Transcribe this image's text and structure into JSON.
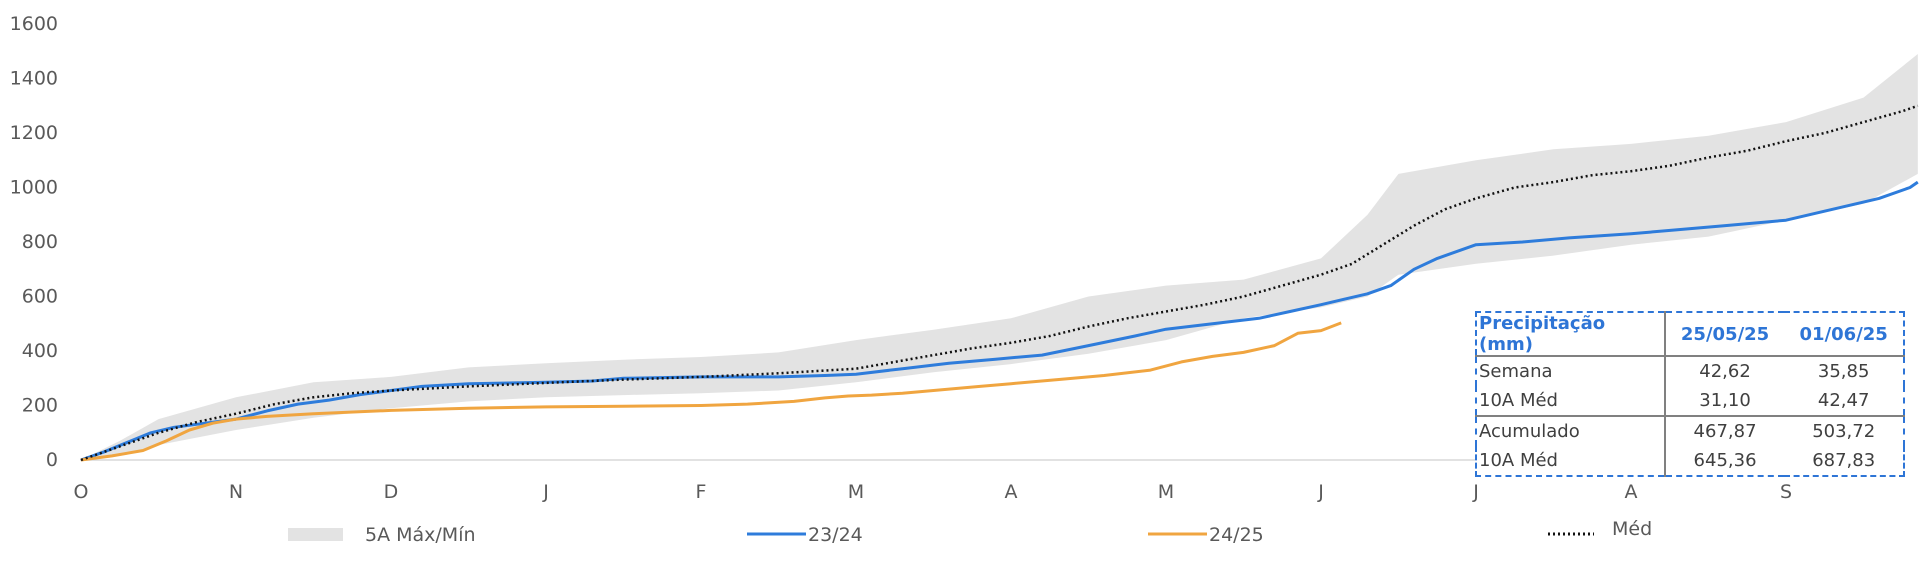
{
  "chart_data": {
    "type": "area",
    "ylim": [
      0,
      1600
    ],
    "yticks": [
      "0",
      "200",
      "400",
      "600",
      "800",
      "1000",
      "1200",
      "1400",
      "1600"
    ],
    "ytick_values": [
      0,
      200,
      400,
      600,
      800,
      1000,
      1200,
      1400,
      1600
    ],
    "categories": [
      "O",
      "N",
      "D",
      "J",
      "F",
      "M",
      "A",
      "M",
      "J",
      "J",
      "A",
      "S"
    ],
    "grid": false,
    "legend_position": "bottom",
    "band": {
      "name": "5A Máx/Mín",
      "color": "#E3E3E3",
      "x": [
        0,
        0.25,
        0.5,
        1,
        1.5,
        2,
        2.5,
        3,
        3.5,
        4,
        4.5,
        5,
        5.5,
        6,
        6.5,
        7,
        7.5,
        8,
        8.3,
        8.5,
        9,
        9.5,
        10,
        10.5,
        11,
        11.5,
        11.85
      ],
      "max": [
        0,
        70,
        150,
        230,
        285,
        305,
        340,
        355,
        368,
        378,
        395,
        440,
        478,
        520,
        600,
        640,
        662,
        740,
        900,
        1050,
        1100,
        1140,
        1160,
        1190,
        1240,
        1330,
        1490
      ],
      "min": [
        0,
        18,
        55,
        110,
        155,
        190,
        215,
        230,
        238,
        245,
        255,
        285,
        322,
        352,
        390,
        440,
        520,
        560,
        600,
        680,
        720,
        750,
        790,
        820,
        880,
        940,
        1050
      ]
    },
    "series": [
      {
        "name": "23/24",
        "color": "#2E7CDB",
        "style": "solid",
        "x": [
          0,
          0.15,
          0.3,
          0.45,
          0.6,
          0.8,
          1,
          1.2,
          1.4,
          1.6,
          1.8,
          2,
          2.2,
          2.5,
          3,
          3.3,
          3.5,
          4,
          4.5,
          4.8,
          5,
          5.3,
          5.6,
          5.9,
          6.2,
          6.5,
          6.8,
          7,
          7.3,
          7.6,
          7.8,
          8,
          8.15,
          8.3,
          8.45,
          8.6,
          8.75,
          9,
          9.3,
          9.6,
          10,
          10.3,
          10.6,
          11,
          11.3,
          11.6,
          11.8,
          11.85
        ],
        "y": [
          0,
          30,
          65,
          100,
          120,
          135,
          150,
          180,
          205,
          220,
          240,
          255,
          270,
          280,
          285,
          290,
          300,
          305,
          305,
          310,
          315,
          335,
          355,
          370,
          385,
          420,
          455,
          480,
          500,
          520,
          545,
          570,
          590,
          610,
          640,
          700,
          740,
          790,
          800,
          815,
          830,
          845,
          860,
          880,
          920,
          960,
          1000,
          1020
        ]
      },
      {
        "name": "24/25",
        "color": "#F0A540",
        "style": "solid",
        "x": [
          0,
          0.2,
          0.4,
          0.55,
          0.7,
          0.85,
          1,
          1.2,
          1.5,
          2,
          2.5,
          3,
          3.5,
          4,
          4.3,
          4.6,
          4.8,
          4.95,
          5.1,
          5.3,
          5.5,
          5.8,
          6,
          6.3,
          6.6,
          6.9,
          7.1,
          7.3,
          7.5,
          7.7,
          7.85,
          8,
          8.13
        ],
        "y": [
          0,
          15,
          35,
          70,
          110,
          135,
          150,
          160,
          170,
          182,
          190,
          195,
          197,
          200,
          205,
          215,
          228,
          235,
          238,
          245,
          255,
          270,
          280,
          295,
          310,
          330,
          360,
          380,
          395,
          420,
          465,
          475,
          503
        ]
      },
      {
        "name": "Méd",
        "color": "#111111",
        "style": "dotted",
        "x": [
          0,
          0.25,
          0.5,
          0.75,
          1,
          1.25,
          1.5,
          1.75,
          2,
          2.5,
          3,
          3.5,
          4,
          4.5,
          5,
          5.25,
          5.5,
          5.75,
          6,
          6.25,
          6.5,
          6.75,
          7,
          7.25,
          7.5,
          7.75,
          8,
          8.2,
          8.4,
          8.6,
          8.8,
          9,
          9.25,
          9.5,
          9.75,
          10,
          10.25,
          10.5,
          10.75,
          11,
          11.25,
          11.5,
          11.75,
          11.85
        ],
        "y": [
          0,
          50,
          100,
          140,
          170,
          205,
          230,
          245,
          255,
          270,
          283,
          295,
          305,
          318,
          335,
          360,
          385,
          410,
          430,
          455,
          490,
          520,
          545,
          570,
          600,
          640,
          680,
          720,
          790,
          860,
          920,
          960,
          1000,
          1020,
          1045,
          1060,
          1080,
          1110,
          1135,
          1170,
          1200,
          1240,
          1280,
          1300
        ]
      }
    ],
    "table": {
      "headers": [
        "Precipitação (mm)",
        "25/05/25",
        "01/06/25"
      ],
      "rows": [
        [
          "Semana",
          "42,62",
          "35,85"
        ],
        [
          "10A Méd",
          "31,10",
          "42,47"
        ],
        [
          "Acumulado",
          "467,87",
          "503,72"
        ],
        [
          "10A Méd",
          "645,36",
          "687,83"
        ]
      ]
    }
  }
}
